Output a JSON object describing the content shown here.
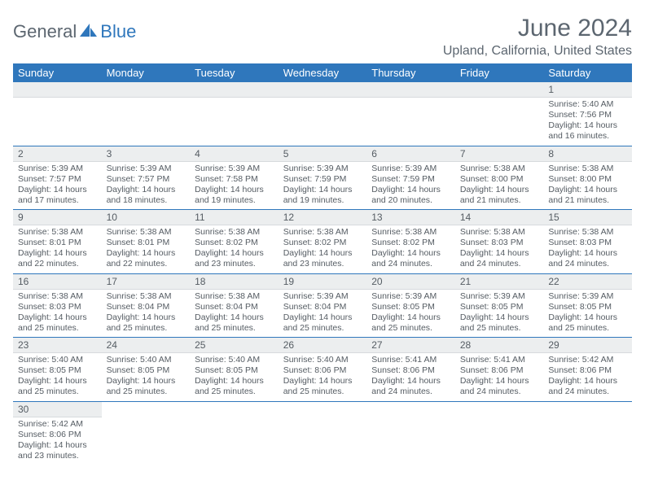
{
  "brand": {
    "part1": "General",
    "part2": "Blue"
  },
  "title": "June 2024",
  "subtitle": "Upland, California, United States",
  "colors": {
    "header_bg": "#2f77bc",
    "header_text": "#ffffff",
    "daynum_bg": "#eceeef",
    "body_text": "#555c63",
    "rule": "#2f77bc",
    "logo_gray": "#5c6670",
    "logo_blue": "#2f77bc",
    "page_bg": "#ffffff"
  },
  "layout": {
    "columns": 7,
    "leading_blanks": 6,
    "col_headers": [
      "Sunday",
      "Monday",
      "Tuesday",
      "Wednesday",
      "Thursday",
      "Friday",
      "Saturday"
    ]
  },
  "days": [
    {
      "n": "1",
      "sunrise": "5:40 AM",
      "sunset": "7:56 PM",
      "daylight": "14 hours and 16 minutes."
    },
    {
      "n": "2",
      "sunrise": "5:39 AM",
      "sunset": "7:57 PM",
      "daylight": "14 hours and 17 minutes."
    },
    {
      "n": "3",
      "sunrise": "5:39 AM",
      "sunset": "7:57 PM",
      "daylight": "14 hours and 18 minutes."
    },
    {
      "n": "4",
      "sunrise": "5:39 AM",
      "sunset": "7:58 PM",
      "daylight": "14 hours and 19 minutes."
    },
    {
      "n": "5",
      "sunrise": "5:39 AM",
      "sunset": "7:59 PM",
      "daylight": "14 hours and 19 minutes."
    },
    {
      "n": "6",
      "sunrise": "5:39 AM",
      "sunset": "7:59 PM",
      "daylight": "14 hours and 20 minutes."
    },
    {
      "n": "7",
      "sunrise": "5:38 AM",
      "sunset": "8:00 PM",
      "daylight": "14 hours and 21 minutes."
    },
    {
      "n": "8",
      "sunrise": "5:38 AM",
      "sunset": "8:00 PM",
      "daylight": "14 hours and 21 minutes."
    },
    {
      "n": "9",
      "sunrise": "5:38 AM",
      "sunset": "8:01 PM",
      "daylight": "14 hours and 22 minutes."
    },
    {
      "n": "10",
      "sunrise": "5:38 AM",
      "sunset": "8:01 PM",
      "daylight": "14 hours and 22 minutes."
    },
    {
      "n": "11",
      "sunrise": "5:38 AM",
      "sunset": "8:02 PM",
      "daylight": "14 hours and 23 minutes."
    },
    {
      "n": "12",
      "sunrise": "5:38 AM",
      "sunset": "8:02 PM",
      "daylight": "14 hours and 23 minutes."
    },
    {
      "n": "13",
      "sunrise": "5:38 AM",
      "sunset": "8:02 PM",
      "daylight": "14 hours and 24 minutes."
    },
    {
      "n": "14",
      "sunrise": "5:38 AM",
      "sunset": "8:03 PM",
      "daylight": "14 hours and 24 minutes."
    },
    {
      "n": "15",
      "sunrise": "5:38 AM",
      "sunset": "8:03 PM",
      "daylight": "14 hours and 24 minutes."
    },
    {
      "n": "16",
      "sunrise": "5:38 AM",
      "sunset": "8:03 PM",
      "daylight": "14 hours and 25 minutes."
    },
    {
      "n": "17",
      "sunrise": "5:38 AM",
      "sunset": "8:04 PM",
      "daylight": "14 hours and 25 minutes."
    },
    {
      "n": "18",
      "sunrise": "5:38 AM",
      "sunset": "8:04 PM",
      "daylight": "14 hours and 25 minutes."
    },
    {
      "n": "19",
      "sunrise": "5:39 AM",
      "sunset": "8:04 PM",
      "daylight": "14 hours and 25 minutes."
    },
    {
      "n": "20",
      "sunrise": "5:39 AM",
      "sunset": "8:05 PM",
      "daylight": "14 hours and 25 minutes."
    },
    {
      "n": "21",
      "sunrise": "5:39 AM",
      "sunset": "8:05 PM",
      "daylight": "14 hours and 25 minutes."
    },
    {
      "n": "22",
      "sunrise": "5:39 AM",
      "sunset": "8:05 PM",
      "daylight": "14 hours and 25 minutes."
    },
    {
      "n": "23",
      "sunrise": "5:40 AM",
      "sunset": "8:05 PM",
      "daylight": "14 hours and 25 minutes."
    },
    {
      "n": "24",
      "sunrise": "5:40 AM",
      "sunset": "8:05 PM",
      "daylight": "14 hours and 25 minutes."
    },
    {
      "n": "25",
      "sunrise": "5:40 AM",
      "sunset": "8:05 PM",
      "daylight": "14 hours and 25 minutes."
    },
    {
      "n": "26",
      "sunrise": "5:40 AM",
      "sunset": "8:06 PM",
      "daylight": "14 hours and 25 minutes."
    },
    {
      "n": "27",
      "sunrise": "5:41 AM",
      "sunset": "8:06 PM",
      "daylight": "14 hours and 24 minutes."
    },
    {
      "n": "28",
      "sunrise": "5:41 AM",
      "sunset": "8:06 PM",
      "daylight": "14 hours and 24 minutes."
    },
    {
      "n": "29",
      "sunrise": "5:42 AM",
      "sunset": "8:06 PM",
      "daylight": "14 hours and 24 minutes."
    },
    {
      "n": "30",
      "sunrise": "5:42 AM",
      "sunset": "8:06 PM",
      "daylight": "14 hours and 23 minutes."
    }
  ],
  "labels": {
    "sunrise": "Sunrise: ",
    "sunset": "Sunset: ",
    "daylight": "Daylight: "
  }
}
